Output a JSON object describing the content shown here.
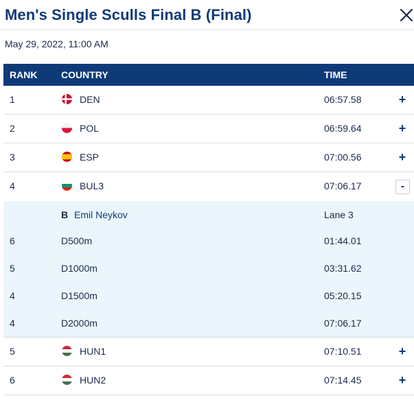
{
  "header": {
    "title": "Men's Single Sculls Final B (Final)",
    "close_icon": "close-icon"
  },
  "date": "May 29, 2022, 11:00 AM",
  "table": {
    "columns": {
      "rank": "RANK",
      "country": "COUNTRY",
      "time": "TIME"
    },
    "rows": [
      {
        "rank": "1",
        "country": "DEN",
        "time": "06:57.58",
        "toggle": "+",
        "flag": "flag-denmark-icon"
      },
      {
        "rank": "2",
        "country": "POL",
        "time": "06:59.64",
        "toggle": "+",
        "flag": "flag-poland-icon"
      },
      {
        "rank": "3",
        "country": "ESP",
        "time": "07:00.56",
        "toggle": "+",
        "flag": "flag-spain-icon"
      },
      {
        "rank": "4",
        "country": "BUL3",
        "time": "07:06.17",
        "toggle": "-",
        "flag": "flag-bulgaria-icon"
      },
      {
        "rank": "5",
        "country": "HUN1",
        "time": "07:10.51",
        "toggle": "+",
        "flag": "flag-hungary-icon"
      },
      {
        "rank": "6",
        "country": "HUN2",
        "time": "07:14.45",
        "toggle": "+",
        "flag": "flag-hungary-icon"
      }
    ],
    "expanded": {
      "athlete": {
        "seat": "B",
        "name": "Emil Neykov",
        "lane": "Lane 3"
      },
      "splits": [
        {
          "rank": "6",
          "distance": "D500m",
          "time": "01:44.01"
        },
        {
          "rank": "5",
          "distance": "D1000m",
          "time": "03:31.62"
        },
        {
          "rank": "4",
          "distance": "D1500m",
          "time": "05:20.15"
        },
        {
          "rank": "4",
          "distance": "D2000m",
          "time": "07:06.17"
        }
      ]
    }
  },
  "colors": {
    "brand_navy": "#0f3a78",
    "expanded_bg": "#eaf6fb",
    "divider": "#d8dde3"
  }
}
